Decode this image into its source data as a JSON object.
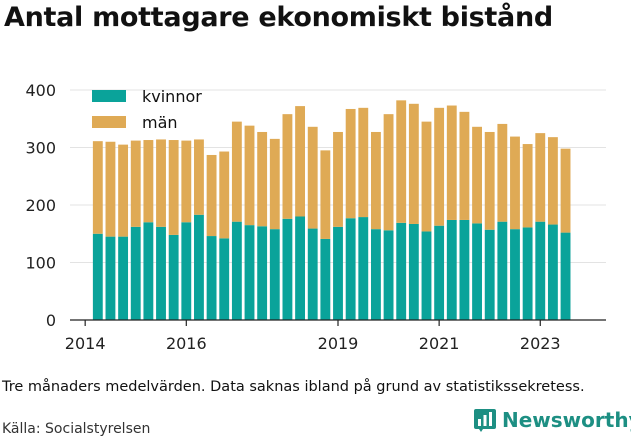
{
  "title": "Antal mottagare ekonomiskt bistånd",
  "note": "Tre månaders medelvärden. Data saknas ibland på grund av statistikssekretess.",
  "source": "Källa: Socialstyrelsen",
  "brand": "Newsworthy",
  "colors": {
    "kvinnor": "#0aa39a",
    "man": "#dfaa55",
    "grid": "#e3e3e3",
    "axis": "#222222",
    "brand": "#1d8f83"
  },
  "chart_data": {
    "type": "bar",
    "stacked": true,
    "ylim": [
      0,
      400
    ],
    "yticks": [
      0,
      100,
      200,
      300,
      400
    ],
    "xlim": [
      2013.7,
      2024.3
    ],
    "xticks": [
      2014,
      2016,
      2019,
      2021,
      2023
    ],
    "grid": true,
    "legend_position": "top-left",
    "x": [
      2014.25,
      2014.5,
      2014.75,
      2015.0,
      2015.25,
      2015.5,
      2015.75,
      2016.0,
      2016.25,
      2016.5,
      2016.75,
      2017.0,
      2017.25,
      2017.5,
      2017.75,
      2018.0,
      2018.25,
      2018.5,
      2018.75,
      2019.0,
      2019.25,
      2019.5,
      2019.75,
      2020.0,
      2020.25,
      2020.5,
      2020.75,
      2021.0,
      2021.25,
      2021.5,
      2021.75,
      2022.0,
      2022.25,
      2022.5,
      2022.75,
      2023.0,
      2023.25,
      2023.5
    ],
    "series": [
      {
        "name": "kvinnor",
        "values": [
          150,
          145,
          145,
          162,
          170,
          162,
          148,
          170,
          183,
          146,
          142,
          171,
          165,
          163,
          158,
          176,
          180,
          159,
          141,
          162,
          177,
          179,
          158,
          156,
          169,
          167,
          154,
          164,
          174,
          174,
          168,
          157,
          171,
          158,
          161,
          171,
          166,
          152
        ]
      },
      {
        "name": "män",
        "values": [
          161,
          165,
          160,
          150,
          143,
          152,
          165,
          142,
          131,
          141,
          151,
          174,
          173,
          164,
          157,
          182,
          192,
          177,
          154,
          165,
          190,
          190,
          169,
          202,
          213,
          209,
          191,
          205,
          199,
          188,
          168,
          170,
          170,
          161,
          145,
          154,
          152,
          146
        ]
      }
    ]
  }
}
